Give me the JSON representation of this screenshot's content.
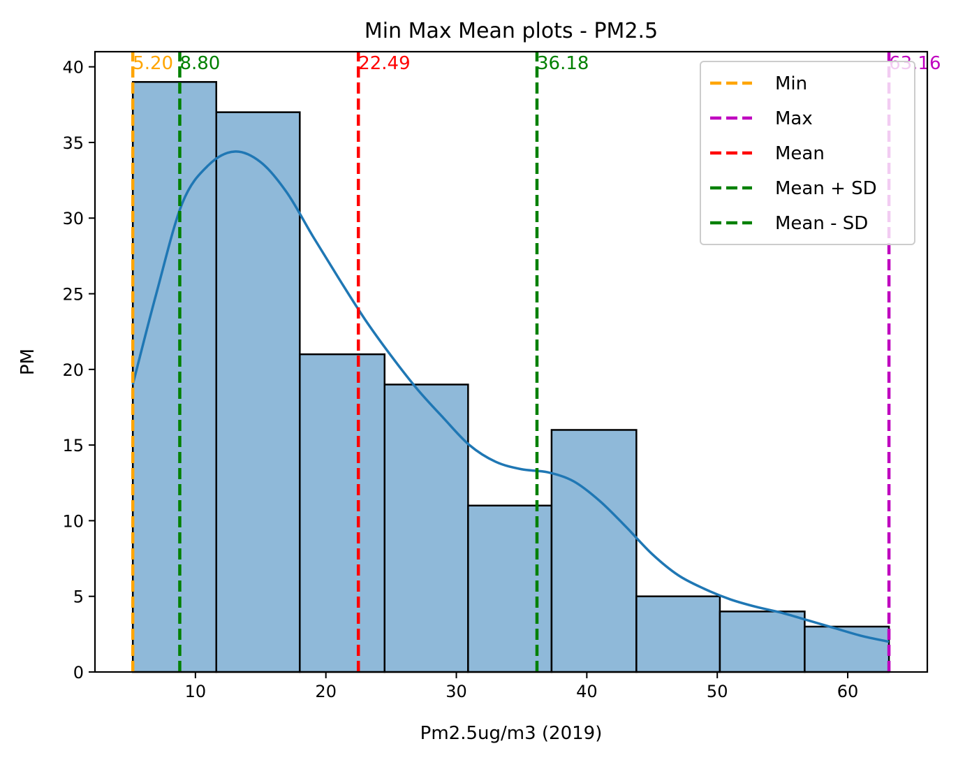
{
  "chart_data": {
    "type": "bar",
    "title": "Min Max Mean plots - PM2.5",
    "xlabel": "Pm2.5ug/m3 (2019)",
    "ylabel": "PM",
    "xlim": [
      2.3,
      66.1
    ],
    "ylim": [
      0,
      41
    ],
    "xticks": [
      10,
      20,
      30,
      40,
      50,
      60
    ],
    "yticks": [
      0,
      5,
      10,
      15,
      20,
      25,
      30,
      35,
      40
    ],
    "grid": false,
    "legend_position": "top-right",
    "histogram": {
      "bin_edges": [
        5.2,
        11.6,
        18.0,
        24.5,
        30.9,
        37.3,
        43.8,
        50.2,
        56.7,
        63.16
      ],
      "counts": [
        39,
        37,
        21,
        19,
        11,
        16,
        5,
        4,
        3
      ],
      "color": "#8fb9d9",
      "edge_color": "#000000"
    },
    "kde": {
      "name": "KDE",
      "color": "#1f77b4",
      "x": [
        5.2,
        7,
        9,
        11,
        13,
        15,
        17,
        19,
        21,
        23,
        25,
        27,
        29,
        31,
        33,
        35,
        37,
        39,
        41,
        43,
        45,
        47,
        49,
        51,
        53,
        55,
        57,
        59,
        61,
        63.16
      ],
      "y": [
        19,
        25,
        31,
        33.5,
        34.4,
        33.7,
        31.7,
        28.8,
        26,
        23.3,
        20.9,
        18.7,
        16.8,
        15,
        13.9,
        13.4,
        13.2,
        12.6,
        11.3,
        9.6,
        7.8,
        6.4,
        5.5,
        4.8,
        4.3,
        3.9,
        3.4,
        2.9,
        2.4,
        2.0
      ]
    },
    "reference_lines": [
      {
        "name": "Min",
        "x": 5.2,
        "label": "5.20",
        "color": "#ffa500"
      },
      {
        "name": "Max",
        "x": 63.16,
        "label": "63.16",
        "color": "#bf00bf"
      },
      {
        "name": "Mean",
        "x": 22.49,
        "label": "22.49",
        "color": "#ff0000"
      },
      {
        "name": "Mean + SD",
        "x": 36.18,
        "label": "36.18",
        "color": "#008000"
      },
      {
        "name": "Mean - SD",
        "x": 8.8,
        "label": "8.80",
        "color": "#008000"
      }
    ]
  }
}
